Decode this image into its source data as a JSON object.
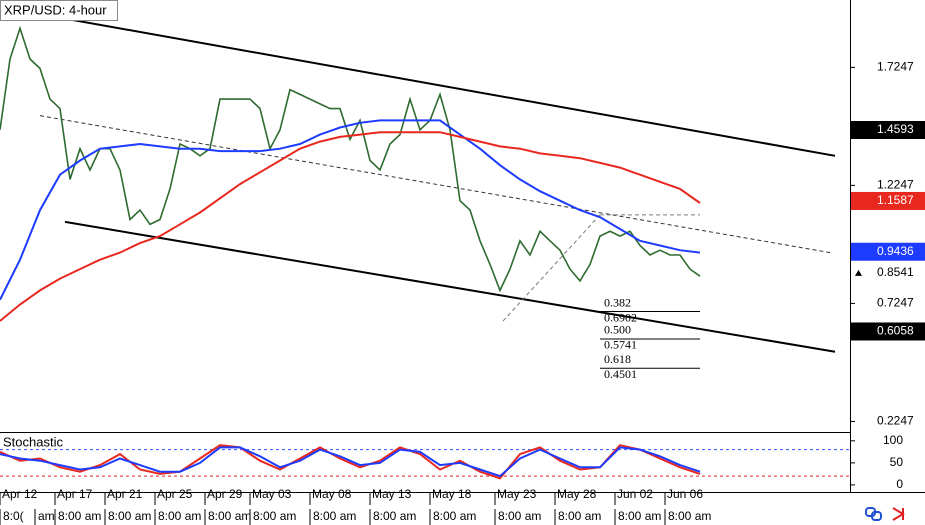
{
  "chart_data": [
    {
      "type": "line",
      "title": "XRP/USD: 4-hour",
      "xlim": [
        0,
        170
      ],
      "ylim": [
        0.18,
        2.01
      ],
      "yticks": [
        1.7247,
        1.2247,
        0.7247,
        0.2247
      ],
      "series": [
        {
          "color": "#2e6b2e",
          "x": [
            0,
            2,
            4,
            6,
            8,
            10,
            12,
            14,
            16,
            18,
            20,
            22,
            24,
            26,
            28,
            30,
            32,
            34,
            36,
            38,
            40,
            42,
            44,
            46,
            48,
            50,
            52,
            54,
            56,
            58,
            60,
            62,
            64,
            66,
            68,
            70,
            72,
            74,
            76,
            78,
            80,
            82,
            84,
            86,
            88,
            90,
            92,
            94,
            96,
            98,
            100,
            102,
            104,
            106,
            108,
            110,
            112,
            114,
            116,
            118,
            120,
            122,
            124,
            126,
            128,
            130,
            132,
            134,
            136,
            138,
            140
          ],
          "values": [
            1.46,
            1.76,
            1.89,
            1.76,
            1.72,
            1.59,
            1.55,
            1.25,
            1.38,
            1.29,
            1.38,
            1.38,
            1.29,
            1.08,
            1.12,
            1.06,
            1.08,
            1.21,
            1.4,
            1.38,
            1.35,
            1.38,
            1.59,
            1.59,
            1.59,
            1.59,
            1.55,
            1.38,
            1.46,
            1.63,
            1.61,
            1.59,
            1.57,
            1.55,
            1.55,
            1.42,
            1.5,
            1.33,
            1.29,
            1.4,
            1.44,
            1.59,
            1.46,
            1.5,
            1.61,
            1.46,
            1.16,
            1.12,
            0.99,
            0.89,
            0.78,
            0.87,
            0.99,
            0.93,
            1.03,
            0.99,
            0.95,
            0.87,
            0.82,
            0.89,
            1.01,
            1.03,
            1.01,
            1.03,
            0.97,
            0.93,
            0.95,
            0.93,
            0.93,
            0.87,
            0.84
          ]
        },
        {
          "color": "#1e3cff",
          "x": [
            0,
            4,
            8,
            12,
            16,
            20,
            24,
            28,
            32,
            36,
            40,
            44,
            48,
            52,
            56,
            60,
            64,
            68,
            72,
            76,
            80,
            84,
            88,
            92,
            96,
            100,
            104,
            108,
            112,
            116,
            120,
            124,
            128,
            132,
            136,
            140
          ],
          "values": [
            0.74,
            0.91,
            1.12,
            1.27,
            1.33,
            1.38,
            1.39,
            1.4,
            1.39,
            1.38,
            1.38,
            1.37,
            1.37,
            1.37,
            1.38,
            1.4,
            1.44,
            1.47,
            1.49,
            1.5,
            1.5,
            1.5,
            1.5,
            1.44,
            1.38,
            1.31,
            1.25,
            1.2,
            1.16,
            1.12,
            1.09,
            1.04,
            0.99,
            0.97,
            0.95,
            0.94
          ]
        },
        {
          "color": "#e8281e",
          "x": [
            0,
            4,
            8,
            12,
            16,
            20,
            24,
            28,
            32,
            36,
            40,
            44,
            48,
            52,
            56,
            60,
            64,
            68,
            72,
            76,
            80,
            84,
            88,
            92,
            96,
            100,
            104,
            108,
            112,
            116,
            120,
            124,
            128,
            132,
            136,
            140
          ],
          "values": [
            0.65,
            0.72,
            0.78,
            0.83,
            0.87,
            0.91,
            0.94,
            0.98,
            1.01,
            1.06,
            1.11,
            1.17,
            1.23,
            1.28,
            1.33,
            1.38,
            1.41,
            1.43,
            1.44,
            1.45,
            1.45,
            1.45,
            1.45,
            1.43,
            1.41,
            1.39,
            1.38,
            1.36,
            1.35,
            1.34,
            1.32,
            1.3,
            1.27,
            1.24,
            1.21,
            1.15
          ]
        }
      ],
      "lines": [
        {
          "x": [
            8,
            167
          ],
          "y": [
            1.95,
            1.35
          ],
          "color": "#000000",
          "dash": false
        },
        {
          "x": [
            13,
            167
          ],
          "y": [
            1.07,
            0.52
          ],
          "color": "#000000",
          "dash": false
        },
        {
          "x": [
            8,
            166
          ],
          "y": [
            1.52,
            0.94
          ],
          "color": "#333333",
          "dash": true
        },
        {
          "x": [
            100.6,
            120
          ],
          "y": [
            0.65,
            1.1
          ],
          "color": "#777777",
          "dash": true
        },
        {
          "x": [
            120,
            140
          ],
          "y": [
            1.1,
            1.1
          ],
          "color": "#777777",
          "dash": true
        }
      ],
      "fib_x": [
        120,
        140
      ],
      "fib_levels": [
        {
          "ratio": "0.382",
          "price": 0.6902
        },
        {
          "ratio": "0.500",
          "price": 0.5741
        },
        {
          "ratio": "0.618",
          "price": 0.4501
        }
      ],
      "price_labels": [
        {
          "value": 1.4593,
          "color": "#000000",
          "text_color": "#ffffff"
        },
        {
          "value": 1.1587,
          "color": "#e8281e",
          "text_color": "#ffffff"
        },
        {
          "value": 0.9436,
          "color": "#1e3cff",
          "text_color": "#ffffff"
        },
        {
          "value": 0.8541,
          "color": "#ffffff",
          "text_color": "#000000"
        },
        {
          "value": 0.6058,
          "color": "#000000",
          "text_color": "#ffffff"
        }
      ]
    },
    {
      "type": "line",
      "title": "Stochastic",
      "xlim": [
        0,
        170
      ],
      "ylim": [
        -16,
        120
      ],
      "yticks": [
        100,
        50,
        0
      ],
      "levels": [
        {
          "value": 80,
          "color": "#3050ff"
        },
        {
          "value": 20,
          "color": "#e02020"
        }
      ],
      "series": [
        {
          "color": "#e8281e",
          "x": [
            0,
            4,
            8,
            12,
            16,
            20,
            24,
            28,
            32,
            36,
            40,
            44,
            48,
            52,
            56,
            60,
            64,
            68,
            72,
            76,
            80,
            84,
            88,
            92,
            96,
            100,
            104,
            108,
            112,
            116,
            120,
            124,
            128,
            132,
            136,
            140
          ],
          "values": [
            75,
            55,
            60,
            40,
            30,
            45,
            70,
            35,
            25,
            30,
            60,
            90,
            85,
            55,
            35,
            60,
            85,
            60,
            40,
            55,
            85,
            70,
            35,
            55,
            30,
            15,
            70,
            85,
            55,
            35,
            40,
            90,
            80,
            60,
            40,
            25
          ]
        },
        {
          "color": "#1e3cff",
          "x": [
            0,
            4,
            8,
            12,
            16,
            20,
            24,
            28,
            32,
            36,
            40,
            44,
            48,
            52,
            56,
            60,
            64,
            68,
            72,
            76,
            80,
            84,
            88,
            92,
            96,
            100,
            104,
            108,
            112,
            116,
            120,
            124,
            128,
            132,
            136,
            140
          ],
          "values": [
            70,
            60,
            55,
            45,
            35,
            40,
            60,
            45,
            30,
            30,
            50,
            85,
            85,
            65,
            40,
            55,
            80,
            65,
            45,
            50,
            80,
            75,
            45,
            50,
            35,
            20,
            60,
            80,
            60,
            40,
            40,
            85,
            80,
            65,
            45,
            30
          ]
        }
      ],
      "xticks": [
        {
          "value": 0,
          "label": "Apr 12"
        },
        {
          "value": 11,
          "label": "Apr 17"
        },
        {
          "value": 21,
          "label": "Apr 21"
        },
        {
          "value": 31,
          "label": "Apr 25"
        },
        {
          "value": 41,
          "label": "Apr 29"
        },
        {
          "value": 50,
          "label": "May 03"
        },
        {
          "value": 62,
          "label": "May 08"
        },
        {
          "value": 74,
          "label": "May 13"
        },
        {
          "value": 86,
          "label": "May 18"
        },
        {
          "value": 99,
          "label": "May 23"
        },
        {
          "value": 111,
          "label": "May 28"
        },
        {
          "value": 123,
          "label": "Jun 02"
        },
        {
          "value": 133,
          "label": "Jun 06"
        }
      ],
      "time_ticks": [
        {
          "value": 0,
          "label": "8:0("
        },
        {
          "value": 7,
          "label": "am"
        },
        {
          "value": 11,
          "label": "8:00 am"
        },
        {
          "value": 21,
          "label": "8:00 am"
        },
        {
          "value": 31,
          "label": "8:00 am"
        },
        {
          "value": 41,
          "label": "8:00 am"
        },
        {
          "value": 50,
          "label": "8:00 am"
        },
        {
          "value": 62,
          "label": "8:00 am"
        },
        {
          "value": 74,
          "label": "8:00 am"
        },
        {
          "value": 86,
          "label": "8:00 am"
        },
        {
          "value": 99,
          "label": "8:00 am"
        },
        {
          "value": 111,
          "label": "8:00 am"
        },
        {
          "value": 123,
          "label": "8:00 am"
        },
        {
          "value": 133,
          "label": "8:00 am"
        }
      ]
    }
  ]
}
